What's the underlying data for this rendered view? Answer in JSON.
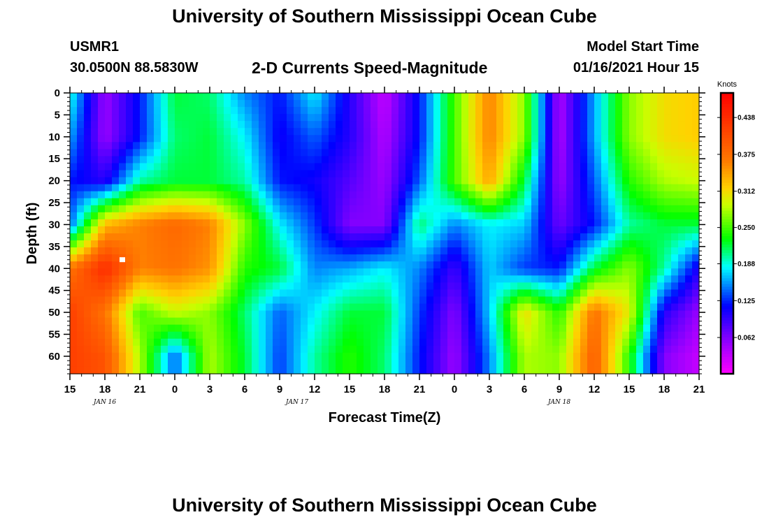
{
  "header": {
    "title": "University of Southern Mississippi Ocean Cube",
    "station": "USMR1",
    "coordinates": "30.0500N 88.5830W",
    "plot_title": "2-D Currents Speed-Magnitude",
    "model_start_label": "Model Start Time",
    "model_start_value": "01/16/2021 Hour 15"
  },
  "footer": {
    "title": "University of Southern Mississippi Ocean Cube"
  },
  "chart_data": {
    "type": "heatmap",
    "title": "2-D Currents Speed-Magnitude",
    "xlabel": "Forecast Time(Z)",
    "ylabel": "Depth (ft)",
    "x_hours_from_start": [
      0,
      3,
      6,
      9,
      12,
      15,
      18,
      21,
      24,
      27,
      30,
      33,
      36,
      39,
      42,
      45,
      48,
      51,
      54
    ],
    "x_tick_labels": [
      "15",
      "18",
      "21",
      "0",
      "3",
      "6",
      "9",
      "12",
      "15",
      "18",
      "21",
      "0",
      "3",
      "6",
      "9",
      "12",
      "15",
      "18",
      "21"
    ],
    "date_labels": [
      {
        "hour": 3,
        "label": "JAN 16"
      },
      {
        "hour": 19.5,
        "label": "JAN 17"
      },
      {
        "hour": 42,
        "label": "JAN 18"
      }
    ],
    "y_ticks": [
      0,
      5,
      10,
      15,
      20,
      25,
      30,
      35,
      40,
      45,
      50,
      55,
      60
    ],
    "ylim": [
      0,
      64
    ],
    "xlim": [
      0,
      54
    ],
    "colorbar": {
      "title": "Knots",
      "ticks": [
        "0.438",
        "0.375",
        "0.312",
        "0.250",
        "0.188",
        "0.125",
        "0.062"
      ],
      "range": [
        0,
        0.48
      ]
    },
    "marker": {
      "hour": 4.5,
      "depth": 38
    },
    "speed_grid": {
      "hours": [
        0,
        3,
        6,
        9,
        12,
        15,
        18,
        21,
        24,
        27,
        30,
        33,
        36,
        39,
        42,
        45,
        48,
        51,
        54
      ],
      "depths": [
        0,
        10,
        20,
        30,
        40,
        50,
        60
      ],
      "values": [
        [
          0.19,
          0.05,
          0.12,
          0.22,
          0.21,
          0.15,
          0.12,
          0.18,
          0.1,
          0.03,
          0.12,
          0.25,
          0.36,
          0.27,
          0.04,
          0.16,
          0.27,
          0.31,
          0.32
        ],
        [
          0.16,
          0.05,
          0.12,
          0.21,
          0.22,
          0.18,
          0.11,
          0.14,
          0.1,
          0.04,
          0.12,
          0.25,
          0.36,
          0.27,
          0.04,
          0.16,
          0.27,
          0.31,
          0.32
        ],
        [
          0.12,
          0.1,
          0.2,
          0.22,
          0.22,
          0.2,
          0.12,
          0.11,
          0.08,
          0.05,
          0.14,
          0.25,
          0.34,
          0.22,
          0.05,
          0.14,
          0.24,
          0.28,
          0.29
        ],
        [
          0.14,
          0.33,
          0.36,
          0.38,
          0.36,
          0.27,
          0.18,
          0.13,
          0.06,
          0.06,
          0.21,
          0.15,
          0.18,
          0.17,
          0.07,
          0.12,
          0.2,
          0.22,
          0.22
        ],
        [
          0.37,
          0.44,
          0.36,
          0.37,
          0.35,
          0.24,
          0.22,
          0.15,
          0.16,
          0.18,
          0.15,
          0.09,
          0.17,
          0.13,
          0.12,
          0.22,
          0.27,
          0.2,
          0.1
        ],
        [
          0.42,
          0.37,
          0.25,
          0.29,
          0.27,
          0.21,
          0.14,
          0.18,
          0.22,
          0.22,
          0.13,
          0.06,
          0.17,
          0.31,
          0.24,
          0.37,
          0.3,
          0.1,
          0.05
        ],
        [
          0.42,
          0.4,
          0.28,
          0.14,
          0.28,
          0.22,
          0.13,
          0.2,
          0.24,
          0.21,
          0.12,
          0.05,
          0.15,
          0.28,
          0.27,
          0.39,
          0.24,
          0.06,
          0.03
        ]
      ]
    }
  }
}
